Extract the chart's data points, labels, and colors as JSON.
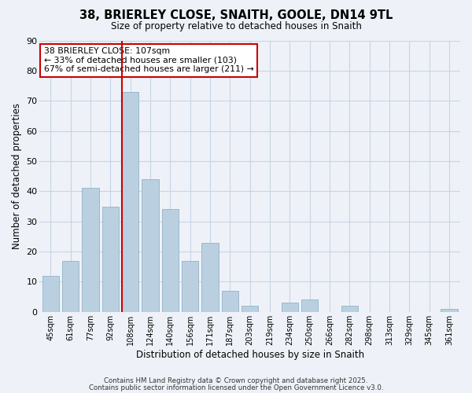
{
  "title1": "38, BRIERLEY CLOSE, SNAITH, GOOLE, DN14 9TL",
  "title2": "Size of property relative to detached houses in Snaith",
  "xlabel": "Distribution of detached houses by size in Snaith",
  "ylabel": "Number of detached properties",
  "bar_labels": [
    "45sqm",
    "61sqm",
    "77sqm",
    "92sqm",
    "108sqm",
    "124sqm",
    "140sqm",
    "156sqm",
    "171sqm",
    "187sqm",
    "203sqm",
    "219sqm",
    "234sqm",
    "250sqm",
    "266sqm",
    "282sqm",
    "298sqm",
    "313sqm",
    "329sqm",
    "345sqm",
    "361sqm"
  ],
  "bar_values": [
    12,
    17,
    41,
    35,
    73,
    44,
    34,
    17,
    23,
    7,
    2,
    0,
    3,
    4,
    0,
    2,
    0,
    0,
    0,
    0,
    1
  ],
  "bar_color": "#bad0e0",
  "bar_edge_color": "#9ab8cc",
  "vline_color": "#cc0000",
  "annotation_text": "38 BRIERLEY CLOSE: 107sqm\n← 33% of detached houses are smaller (103)\n67% of semi-detached houses are larger (211) →",
  "annotation_box_color": "#ffffff",
  "annotation_box_edge": "#cc0000",
  "ylim": [
    0,
    90
  ],
  "yticks": [
    0,
    10,
    20,
    30,
    40,
    50,
    60,
    70,
    80,
    90
  ],
  "grid_color": "#c8d4e4",
  "background_color": "#eef2f8",
  "footnote1": "Contains HM Land Registry data © Crown copyright and database right 2025.",
  "footnote2": "Contains public sector information licensed under the Open Government Licence v3.0."
}
